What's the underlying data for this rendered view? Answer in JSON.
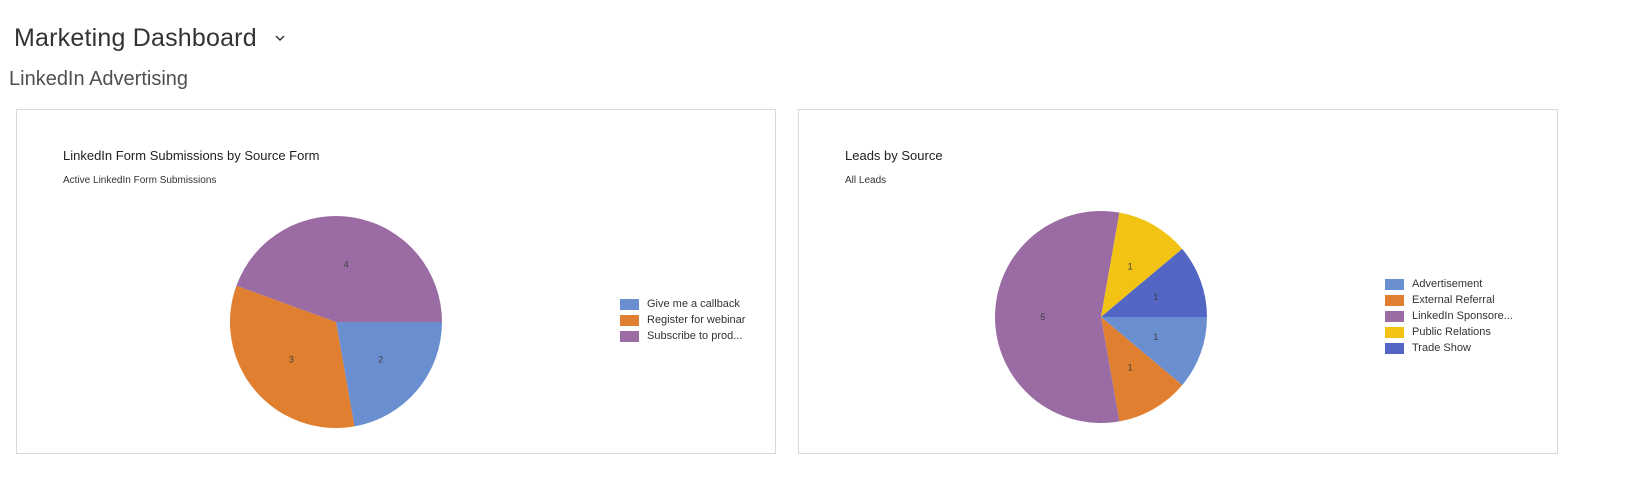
{
  "header": {
    "title": "Marketing Dashboard",
    "chevron_icon": "chevron-down-icon"
  },
  "section": {
    "title": "LinkedIn Advertising"
  },
  "chart_data": [
    {
      "type": "pie",
      "title": "LinkedIn Form Submissions by Source Form",
      "subtitle": "Active LinkedIn Form Submissions",
      "categories": [
        "Give me a callback",
        "Register for webinar",
        "Subscribe to prod..."
      ],
      "values": [
        2,
        3,
        4
      ],
      "colors": [
        "#6a8fd0",
        "#e07f2f",
        "#9b6ca3"
      ],
      "legend_position": "right"
    },
    {
      "type": "pie",
      "title": "Leads by Source",
      "subtitle": "All Leads",
      "categories": [
        "Advertisement",
        "External Referral",
        "LinkedIn Sponsore...",
        "Public Relations",
        "Trade Show"
      ],
      "values": [
        1,
        1,
        5,
        1,
        1
      ],
      "colors": [
        "#6a8fd0",
        "#e07f2f",
        "#9b6ca3",
        "#f2c314",
        "#5466c4"
      ],
      "legend_position": "right"
    }
  ]
}
